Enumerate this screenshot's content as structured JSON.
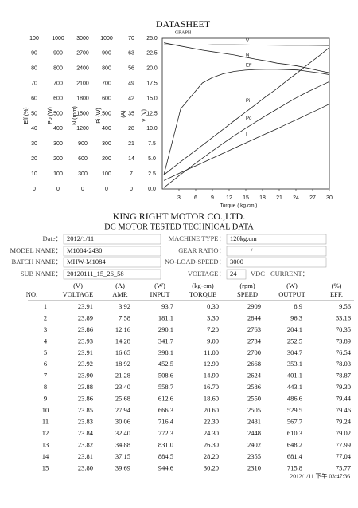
{
  "header": {
    "title": "DATASHEET",
    "subtitle": "GRAPH"
  },
  "chart": {
    "axes": [
      {
        "label": "Eff (%)",
        "ylim": [
          0,
          100
        ],
        "ticks": [
          0,
          10,
          20,
          30,
          40,
          50,
          60,
          70,
          80,
          90,
          100
        ]
      },
      {
        "label": "Po (W)",
        "ylim": [
          0,
          1000
        ],
        "ticks": [
          0,
          100,
          200,
          300,
          400,
          500,
          600,
          700,
          800,
          900,
          1000
        ]
      },
      {
        "label": "N (rpm)",
        "ylim": [
          0,
          3000
        ],
        "ticks": [
          0,
          300,
          600,
          900,
          1200,
          1500,
          1800,
          2100,
          2400,
          2700,
          3000
        ]
      },
      {
        "label": "Pi (W)",
        "ylim": [
          0,
          1000
        ],
        "ticks": [
          0,
          100,
          200,
          300,
          400,
          500,
          600,
          700,
          800,
          900,
          1000
        ]
      },
      {
        "label": "I (A)",
        "ylim": [
          0,
          70
        ],
        "ticks": [
          0,
          7,
          14,
          21,
          28,
          35,
          42,
          49,
          56,
          63,
          70
        ]
      },
      {
        "label": "V (V)",
        "ylim": [
          0,
          25
        ],
        "ticks": [
          {
            "value": 0,
            "label": "0.0"
          },
          {
            "value": 2.5,
            "label": "2.5"
          },
          {
            "value": 5,
            "label": "5.0"
          },
          {
            "value": 7.5,
            "label": "7.5"
          },
          {
            "value": 10,
            "label": "10.0"
          },
          {
            "value": 12.5,
            "label": "12.5"
          },
          {
            "value": 15,
            "label": "15.0"
          },
          {
            "value": 17.5,
            "label": "17.5"
          },
          {
            "value": 20,
            "label": "20.0"
          },
          {
            "value": 22.5,
            "label": "22.5"
          },
          {
            "value": 25,
            "label": "25.0"
          }
        ]
      }
    ],
    "xlabel": "Torque ( kg.cm )",
    "xlim": [
      0,
      30
    ],
    "xticks": [
      3,
      6,
      9,
      12,
      15,
      18,
      21,
      24,
      27,
      30
    ],
    "series": [
      {
        "name": "V"
      },
      {
        "name": "N"
      },
      {
        "name": "Eff"
      },
      {
        "name": "Pi"
      },
      {
        "name": "Po"
      },
      {
        "name": "I"
      }
    ]
  },
  "company": "KING RIGHT MOTOR CO.,LTD.",
  "report_title": "DC MOTOR TESTED TECHNICAL DATA",
  "info": {
    "left": [
      {
        "label": "Date：",
        "value": "2012/1/11"
      },
      {
        "label": "MODEL NAME：",
        "value": "M1084-2430"
      },
      {
        "label": "BATCH NAME：",
        "value": "MHW-M1084"
      },
      {
        "label": "SUB NAME：",
        "value": "20120111_15_26_58"
      }
    ],
    "right": [
      {
        "label": "MACHINE TYPE：",
        "value": "120kg.cm"
      },
      {
        "label": "GEAR RATIO：",
        "value": "/"
      },
      {
        "label": "NO-LOAD-SPEED：",
        "value": "3000"
      },
      {
        "label": "VOLTAGE：",
        "value": "24",
        "unit": "VDC"
      }
    ],
    "current_label": "CURRENT："
  },
  "table": {
    "units": [
      "(V)",
      "(A)",
      "(W)",
      "(kg-cm)",
      "(rpm)",
      "(W)",
      "(%)"
    ],
    "header": [
      "NO.",
      "VOLTAGE",
      "AMP.",
      "INPUT",
      "TORQUE",
      "SPEED",
      "OUTPUT",
      "EFF."
    ],
    "rows": [
      [
        "1",
        "23.91",
        "3.92",
        "93.7",
        "0.30",
        "2909",
        "8.9",
        "9.56"
      ],
      [
        "2",
        "23.89",
        "7.58",
        "181.1",
        "3.30",
        "2844",
        "96.3",
        "53.16"
      ],
      [
        "3",
        "23.86",
        "12.16",
        "290.1",
        "7.20",
        "2763",
        "204.1",
        "70.35"
      ],
      [
        "4",
        "23.93",
        "14.28",
        "341.7",
        "9.00",
        "2734",
        "252.5",
        "73.89"
      ],
      [
        "5",
        "23.91",
        "16.65",
        "398.1",
        "11.00",
        "2700",
        "304.7",
        "76.54"
      ],
      [
        "6",
        "23.92",
        "18.92",
        "452.5",
        "12.90",
        "2668",
        "353.1",
        "78.03"
      ],
      [
        "7",
        "23.90",
        "21.28",
        "508.6",
        "14.90",
        "2624",
        "401.1",
        "78.87"
      ],
      [
        "8",
        "23.88",
        "23.40",
        "558.7",
        "16.70",
        "2586",
        "443.1",
        "79.30"
      ],
      [
        "9",
        "23.86",
        "25.68",
        "612.6",
        "18.60",
        "2550",
        "486.6",
        "79.44"
      ],
      [
        "10",
        "23.85",
        "27.94",
        "666.3",
        "20.60",
        "2505",
        "529.5",
        "79.46"
      ],
      [
        "11",
        "23.83",
        "30.06",
        "716.4",
        "22.30",
        "2481",
        "567.7",
        "79.24"
      ],
      [
        "12",
        "23.84",
        "32.40",
        "772.3",
        "24.30",
        "2448",
        "610.3",
        "79.02"
      ],
      [
        "13",
        "23.82",
        "34.88",
        "831.0",
        "26.30",
        "2402",
        "648.2",
        "77.99"
      ],
      [
        "14",
        "23.81",
        "37.15",
        "884.5",
        "28.20",
        "2355",
        "681.4",
        "77.04"
      ],
      [
        "15",
        "23.80",
        "39.69",
        "944.6",
        "30.20",
        "2310",
        "715.8",
        "75.77"
      ]
    ]
  },
  "footer": "2012/1/11 下午 03:47:36"
}
